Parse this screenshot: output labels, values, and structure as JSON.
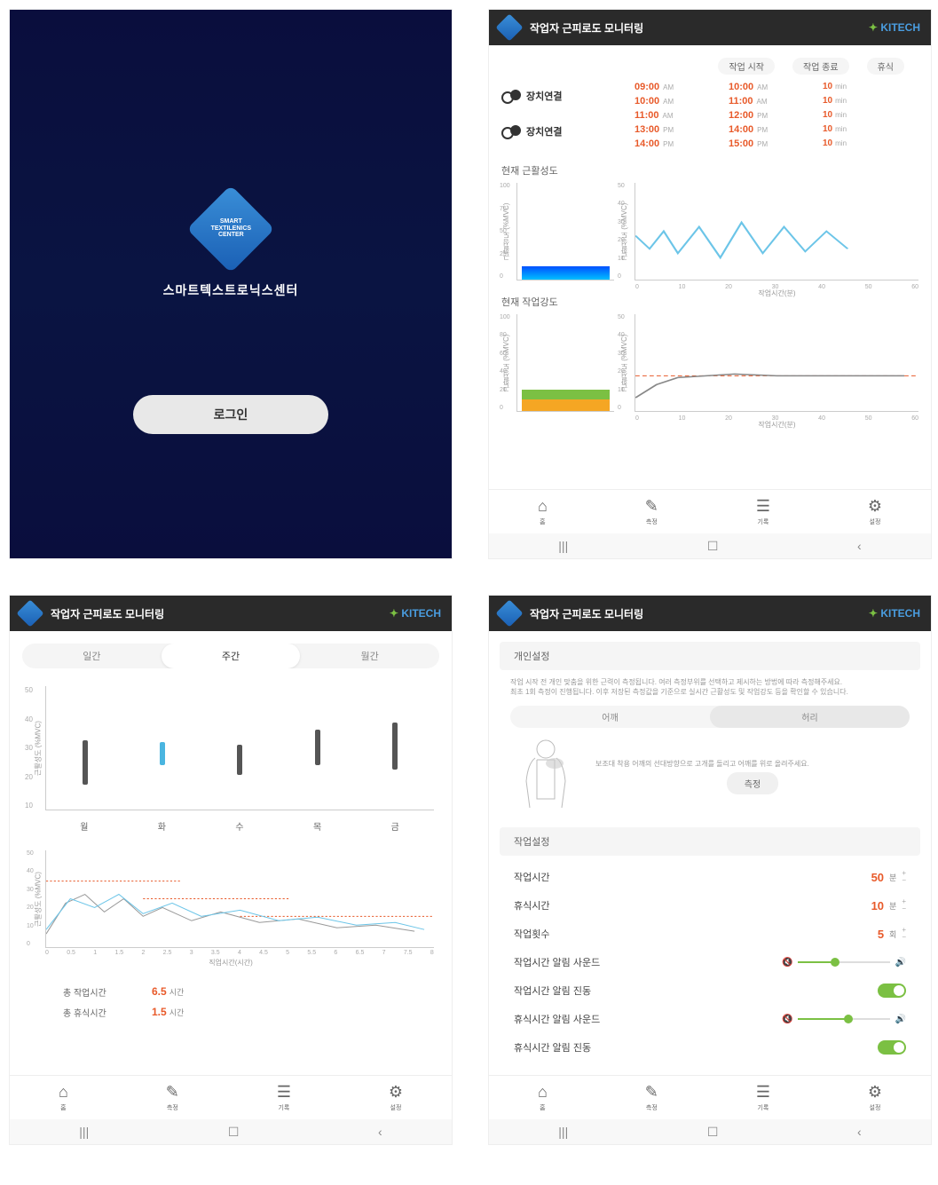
{
  "login": {
    "logo_text": "SMART\nTEXTILENICS\nCENTER",
    "title": "스마트텍스트로닉스센터",
    "button": "로그인"
  },
  "header": {
    "title": "작업자 근피로도 모니터링",
    "brand": "KITECH"
  },
  "monitoring": {
    "sched_headers": [
      "작업 시작",
      "작업 종료",
      "휴식"
    ],
    "device_label": "장치연결",
    "schedule": [
      {
        "start": "09:00",
        "start_ap": "AM",
        "end": "10:00",
        "end_ap": "AM",
        "rest": "10",
        "rest_u": "min"
      },
      {
        "start": "10:00",
        "start_ap": "AM",
        "end": "11:00",
        "end_ap": "AM",
        "rest": "10",
        "rest_u": "min"
      },
      {
        "start": "11:00",
        "start_ap": "AM",
        "end": "12:00",
        "end_ap": "PM",
        "rest": "10",
        "rest_u": "min"
      },
      {
        "start": "13:00",
        "start_ap": "PM",
        "end": "14:00",
        "end_ap": "PM",
        "rest": "10",
        "rest_u": "min"
      },
      {
        "start": "14:00",
        "start_ap": "PM",
        "end": "15:00",
        "end_ap": "PM",
        "rest": "10",
        "rest_u": "min"
      }
    ],
    "chart1": {
      "title": "현재 근활성도",
      "y_label": "근활성도 (%MVC)",
      "x_label": "작업시간(분)",
      "y_ticks": [
        "100",
        "75",
        "50",
        "25",
        "0"
      ],
      "x_ticks": [
        "0",
        "10",
        "20",
        "30",
        "40",
        "50",
        "60"
      ],
      "line_y_ticks": [
        "50",
        "40",
        "30",
        "20",
        "10",
        "0"
      ],
      "bar_height_pct": 14,
      "line_points": "0,60 10,75 20,55 30,80 45,50 60,85 75,45 90,80 105,50 120,78 135,55 150,75",
      "line_color": "#6cc5e8",
      "bar_gradient": [
        "#0050ff",
        "#00bfff"
      ]
    },
    "chart2": {
      "title": "현재 작업강도",
      "y_label": "근활성도 (%MVC)",
      "x_label": "작업시간(분)",
      "y_ticks": [
        "100",
        "80",
        "60",
        "40",
        "20",
        "0"
      ],
      "x_ticks": [
        "0",
        "10",
        "20",
        "30",
        "40",
        "50",
        "60"
      ],
      "line_y_ticks": [
        "50",
        "40",
        "30",
        "20",
        "10",
        "0"
      ],
      "green_pct": 10,
      "orange_pct": 12,
      "line_points": "0,95 15,80 30,72 50,70 70,68 100,70 130,70 160,70 190,70",
      "ref_line_y": 70,
      "line_color": "#888888",
      "ref_color": "#e85a2a"
    }
  },
  "nav": {
    "items": [
      {
        "icon": "⌂",
        "label": "홈"
      },
      {
        "icon": "✎",
        "label": "측정"
      },
      {
        "icon": "☰",
        "label": "기록"
      },
      {
        "icon": "⚙",
        "label": "설정"
      }
    ]
  },
  "android": {
    "recent": "|||",
    "home": "☐",
    "back": "‹"
  },
  "history": {
    "tabs": [
      "일간",
      "주간",
      "월간"
    ],
    "active_tab": 1,
    "y_label": "근활성도 (%MVC)",
    "y_ticks": [
      "50",
      "40",
      "30",
      "20",
      "10"
    ],
    "days": [
      "월",
      "화",
      "수",
      "목",
      "금"
    ],
    "bars": [
      {
        "low": 10,
        "high": 28,
        "color": "#555"
      },
      {
        "low": 18,
        "high": 27,
        "color": "#4ab5e0"
      },
      {
        "low": 14,
        "high": 26,
        "color": "#555"
      },
      {
        "low": 18,
        "high": 32,
        "color": "#555"
      },
      {
        "low": 16,
        "high": 35,
        "color": "#555"
      }
    ],
    "trend": {
      "y_label": "근활성도 (%MVC)",
      "y_ticks": [
        "50",
        "40",
        "30",
        "20",
        "10",
        "0"
      ],
      "x_label": "직업시간(시간)",
      "x_ticks": [
        "0",
        "0.5",
        "1",
        "1.5",
        "2",
        "2.5",
        "3",
        "3.5",
        "4",
        "4.5",
        "5",
        "5.5",
        "6",
        "6.5",
        "7",
        "7.5",
        "8"
      ],
      "line_gray": "0,95 20,60 40,50 60,70 80,55 100,75 120,65 150,80 180,70 220,82 260,78 300,88 340,85 380,92",
      "line_blue": "0,90 25,55 50,65 75,50 100,72 130,60 160,75 200,68 240,80 280,76 320,85 360,82 390,90",
      "ref1_y": 35,
      "ref2_y": 55,
      "ref3_y": 75,
      "ref_color": "#e85a2a"
    },
    "summary": [
      {
        "label": "총 작업시간",
        "value": "6.5",
        "unit": "시간"
      },
      {
        "label": "총 휴식시간",
        "value": "1.5",
        "unit": "시간"
      }
    ]
  },
  "settings": {
    "personal_header": "개인설정",
    "desc1": "작업 시작 전 개인 맞춤을 위한 근력이 측정됩니다. 여러 측정부위를 선택하고 제시하는 방법에 따라 측정해주세요.",
    "desc2": "최초 1회 측정이 진행됩니다. 이후 저장된 측정값을 기준으로 실시간 근활성도 및 작업강도 등을 확인할 수 있습니다.",
    "body_tabs": [
      "어깨",
      "허리"
    ],
    "body_active": 1,
    "body_instruction": "보조대 착용 어깨의 선대방향으로 고개를 돌리고 어깨를 위로 올려주세요.",
    "measure_btn": "측정",
    "work_header": "작업설정",
    "rows": [
      {
        "label": "작업시간",
        "value": "50",
        "unit": "분",
        "type": "stepper"
      },
      {
        "label": "휴식시간",
        "value": "10",
        "unit": "분",
        "type": "stepper"
      },
      {
        "label": "작업횟수",
        "value": "5",
        "unit": "회",
        "type": "stepper"
      },
      {
        "label": "작업시간 알림 사운드",
        "type": "slider",
        "slider_pos": 40
      },
      {
        "label": "작업시간 알림 진동",
        "type": "toggle",
        "on": true
      },
      {
        "label": "휴식시간 알림 사운드",
        "type": "slider",
        "slider_pos": 55
      },
      {
        "label": "휴식시간 알림 진동",
        "type": "toggle",
        "on": true
      }
    ]
  }
}
